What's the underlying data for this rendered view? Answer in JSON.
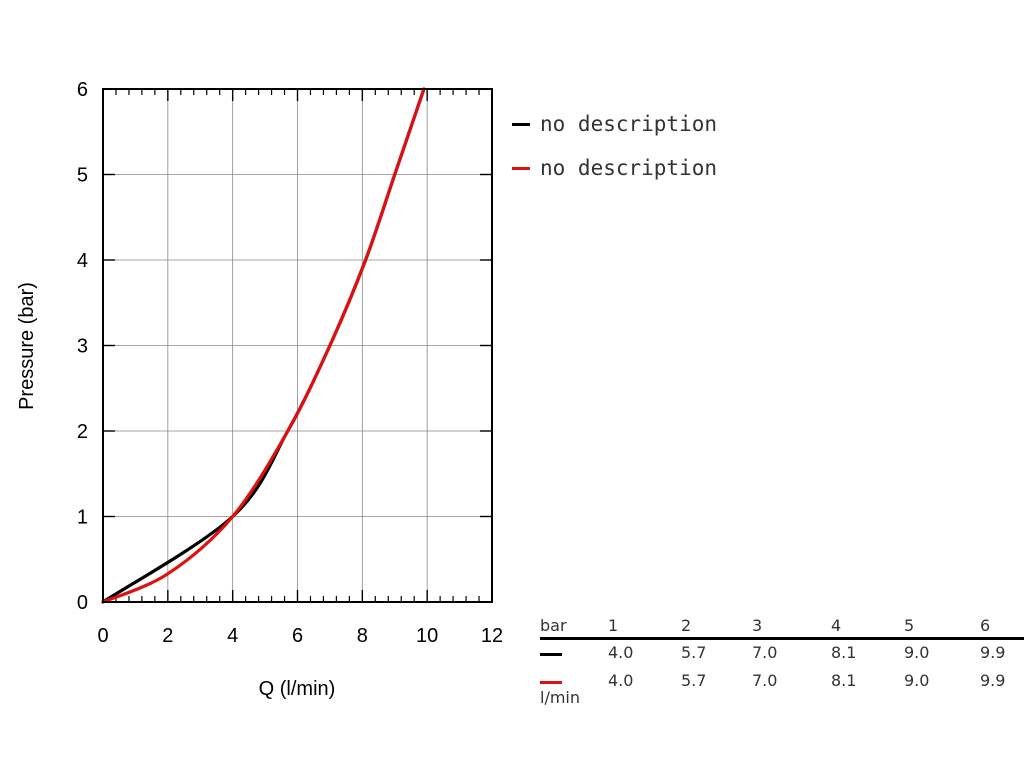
{
  "chart_data": {
    "type": "line",
    "title": "",
    "xlabel": "Q (l/min)",
    "ylabel": "Pressure (bar)",
    "xlim": [
      0,
      12
    ],
    "ylim": [
      0,
      6
    ],
    "xticks": [
      "0",
      "2",
      "4",
      "6",
      "8",
      "10",
      "12"
    ],
    "yticks": [
      "0",
      "1",
      "2",
      "3",
      "4",
      "5",
      "6"
    ],
    "grid": true,
    "legend_position": "right",
    "series": [
      {
        "name": "no description",
        "color": "#000000",
        "x": [
          0,
          4.0,
          5.7,
          7.0,
          8.1,
          9.0,
          9.9
        ],
        "y": [
          0,
          1,
          2,
          3,
          4,
          5,
          6
        ]
      },
      {
        "name": "no description",
        "color": "#dd1111",
        "x": [
          0,
          2.0,
          4.0,
          5.7,
          7.0,
          8.1,
          9.0,
          9.9
        ],
        "y": [
          0,
          0.33,
          1,
          2,
          3,
          4,
          5,
          6
        ]
      }
    ]
  },
  "table": {
    "row_header": "bar",
    "columns": [
      "1",
      "2",
      "3",
      "4",
      "5",
      "6"
    ],
    "rows": [
      {
        "color": "#000000",
        "values": [
          "4.0",
          "5.7",
          "7.0",
          "8.1",
          "9.0",
          "9.9"
        ]
      },
      {
        "color": "#dd1111",
        "values": [
          "4.0",
          "5.7",
          "7.0",
          "8.1",
          "9.0",
          "9.9"
        ]
      }
    ],
    "unit_label": "l/min"
  }
}
